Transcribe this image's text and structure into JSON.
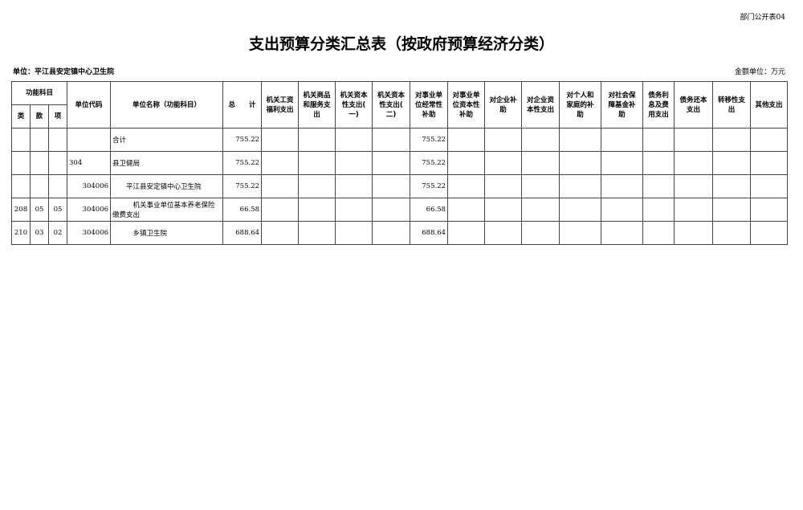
{
  "form_code": "部门公开表04",
  "title": "支出预算分类汇总表（按政府预算经济分类）",
  "unit_label": "单位：平江县安定镇中心卫生院",
  "money_unit": "金额单位：万元",
  "headers": {
    "func": "功能科目",
    "lei": "类",
    "kuan": "款",
    "xiang": "项",
    "code": "单位代码",
    "name": "单位名称（功能科目）",
    "total": "总　　计",
    "cols": [
      "机关工资\n福利支出",
      "机关商品\n和服务支\n出",
      "机关资本\n性支出(\n一)",
      "机关资本\n性支出(\n二)",
      "对事业单\n位经常性\n补助",
      "对事业单\n位资本性\n补助",
      "对企业补\n助",
      "对企业资\n本性支出",
      "对个人和\n家庭的补\n助",
      "对社会保\n障基金补\n助",
      "债务利\n息及费\n用支出",
      "债务还本\n支出",
      "转移性支\n出",
      "其他支出"
    ]
  },
  "rows": [
    {
      "lei": "",
      "kuan": "",
      "xiang": "",
      "code": "",
      "name": "合计",
      "total": "755.22",
      "subsidy": "755.22"
    },
    {
      "lei": "",
      "kuan": "",
      "xiang": "",
      "code": "304",
      "name": "县卫健局",
      "total": "755.22",
      "subsidy": "755.22"
    },
    {
      "lei": "",
      "kuan": "",
      "xiang": "",
      "code": "304006",
      "name": "　　平江县安定镇中心卫生院",
      "total": "755.22",
      "subsidy": "755.22"
    },
    {
      "lei": "208",
      "kuan": "05",
      "xiang": "05",
      "code": "304006",
      "name": "　　　机关事业单位基本养老保险缴费支出",
      "total": "66.58",
      "subsidy": "66.58"
    },
    {
      "lei": "210",
      "kuan": "03",
      "xiang": "02",
      "code": "304006",
      "name": "　　　乡镇卫生院",
      "total": "688.64",
      "subsidy": "688.64"
    }
  ]
}
